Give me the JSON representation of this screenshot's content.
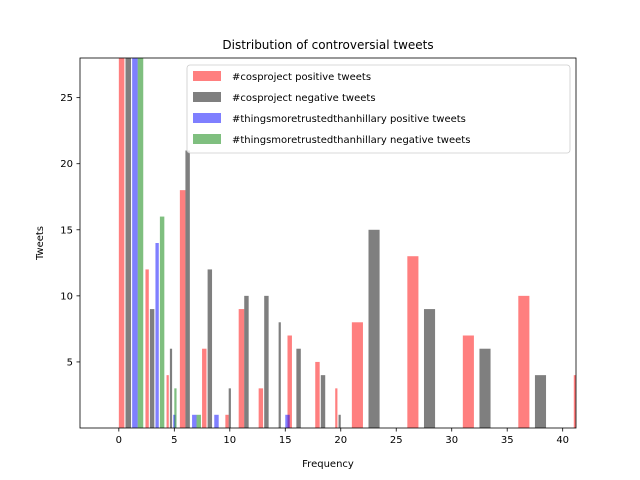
{
  "chart_data": {
    "type": "bar",
    "title": "Distribution of controversial tweets",
    "xlabel": "Frequency",
    "ylabel": "Tweets",
    "xlim": [
      -3.5,
      41.2
    ],
    "ylim": [
      0,
      28
    ],
    "xticks": [
      0,
      5,
      10,
      15,
      20,
      25,
      30,
      35,
      40
    ],
    "yticks": [
      5,
      10,
      15,
      20,
      25
    ],
    "grid": false,
    "legend_position": "top-right",
    "series": [
      {
        "name": "#cosproject positive tweets",
        "color": "#ff0000",
        "opacity": 0.5,
        "bars": [
          {
            "x": 0,
            "w": 0.5,
            "y": 28
          },
          {
            "x": 2.4,
            "w": 0.3,
            "y": 12
          },
          {
            "x": 4.3,
            "w": 0.2,
            "y": 4
          },
          {
            "x": 5.5,
            "w": 0.5,
            "y": 18
          },
          {
            "x": 7.5,
            "w": 0.4,
            "y": 6
          },
          {
            "x": 9.6,
            "w": 0.3,
            "y": 1
          },
          {
            "x": 10.8,
            "w": 0.5,
            "y": 9
          },
          {
            "x": 12.6,
            "w": 0.4,
            "y": 3
          },
          {
            "x": 15.2,
            "w": 0.4,
            "y": 7
          },
          {
            "x": 17.7,
            "w": 0.4,
            "y": 5
          },
          {
            "x": 19.5,
            "w": 0.2,
            "y": 3
          },
          {
            "x": 21.0,
            "w": 1.0,
            "y": 8
          },
          {
            "x": 26.0,
            "w": 1.0,
            "y": 13
          },
          {
            "x": 31.0,
            "w": 1.0,
            "y": 7
          },
          {
            "x": 36.0,
            "w": 1.0,
            "y": 10
          },
          {
            "x": 41.0,
            "w": 1.0,
            "y": 4
          }
        ]
      },
      {
        "name": "#cosproject negative tweets",
        "color": "#000000",
        "opacity": 0.5,
        "bars": [
          {
            "x": 0.6,
            "w": 0.5,
            "y": 28
          },
          {
            "x": 2.8,
            "w": 0.4,
            "y": 9
          },
          {
            "x": 4.6,
            "w": 0.2,
            "y": 6
          },
          {
            "x": 6.0,
            "w": 0.4,
            "y": 21
          },
          {
            "x": 8.0,
            "w": 0.4,
            "y": 12
          },
          {
            "x": 9.9,
            "w": 0.2,
            "y": 3
          },
          {
            "x": 11.3,
            "w": 0.4,
            "y": 10
          },
          {
            "x": 13.1,
            "w": 0.4,
            "y": 10
          },
          {
            "x": 14.4,
            "w": 0.2,
            "y": 8
          },
          {
            "x": 16.0,
            "w": 0.4,
            "y": 6
          },
          {
            "x": 18.2,
            "w": 0.4,
            "y": 4
          },
          {
            "x": 19.8,
            "w": 0.2,
            "y": 1
          },
          {
            "x": 22.5,
            "w": 1.0,
            "y": 15
          },
          {
            "x": 27.5,
            "w": 1.0,
            "y": 9
          },
          {
            "x": 32.5,
            "w": 1.0,
            "y": 6
          },
          {
            "x": 37.5,
            "w": 1.0,
            "y": 4
          }
        ]
      },
      {
        "name": "#thingsmoretrustedthanhillary positive tweets",
        "color": "#0000ff",
        "opacity": 0.5,
        "bars": [
          {
            "x": 1.2,
            "w": 0.5,
            "y": 28
          },
          {
            "x": 3.3,
            "w": 0.3,
            "y": 14
          },
          {
            "x": 4.9,
            "w": 0.2,
            "y": 1
          },
          {
            "x": 6.6,
            "w": 0.4,
            "y": 1
          },
          {
            "x": 8.6,
            "w": 0.4,
            "y": 1
          },
          {
            "x": 15.0,
            "w": 0.4,
            "y": 1
          }
        ]
      },
      {
        "name": "#thingsmoretrustedthanhillary negative tweets",
        "color": "#008000",
        "opacity": 0.5,
        "bars": [
          {
            "x": 1.7,
            "w": 0.5,
            "y": 28
          },
          {
            "x": 3.7,
            "w": 0.4,
            "y": 16
          },
          {
            "x": 5.0,
            "w": 0.2,
            "y": 3
          },
          {
            "x": 7.0,
            "w": 0.4,
            "y": 1
          }
        ]
      }
    ]
  }
}
